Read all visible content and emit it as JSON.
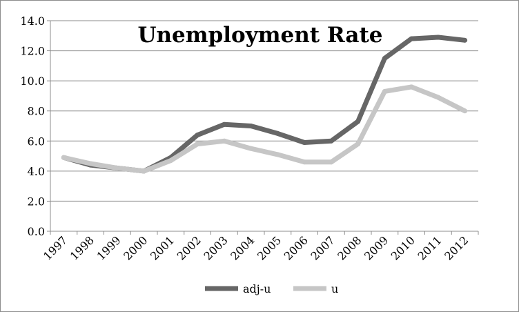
{
  "chart_data": {
    "type": "line",
    "title": "Unemployment Rate",
    "xlabel": "",
    "ylabel": "",
    "categories": [
      "1997",
      "1998",
      "1999",
      "2000",
      "2001",
      "2002",
      "2003",
      "2004",
      "2005",
      "2006",
      "2007",
      "2008",
      "2009",
      "2010",
      "2011",
      "2012"
    ],
    "ylim": [
      0,
      14
    ],
    "yticks": [
      "0.0",
      "2.0",
      "4.0",
      "6.0",
      "8.0",
      "10.0",
      "12.0",
      "14.0"
    ],
    "grid": "horizontal",
    "legend_position": "bottom",
    "series": [
      {
        "name": "adj-u",
        "color": "#666666",
        "values": [
          4.9,
          4.4,
          4.2,
          4.0,
          4.9,
          6.4,
          7.1,
          7.0,
          6.5,
          5.9,
          6.0,
          7.3,
          11.5,
          12.8,
          12.9,
          12.7
        ]
      },
      {
        "name": "u",
        "color": "#c6c6c6",
        "values": [
          4.9,
          4.5,
          4.2,
          4.0,
          4.7,
          5.8,
          6.0,
          5.5,
          5.1,
          4.6,
          4.6,
          5.8,
          9.3,
          9.6,
          8.9,
          8.0
        ]
      }
    ]
  }
}
